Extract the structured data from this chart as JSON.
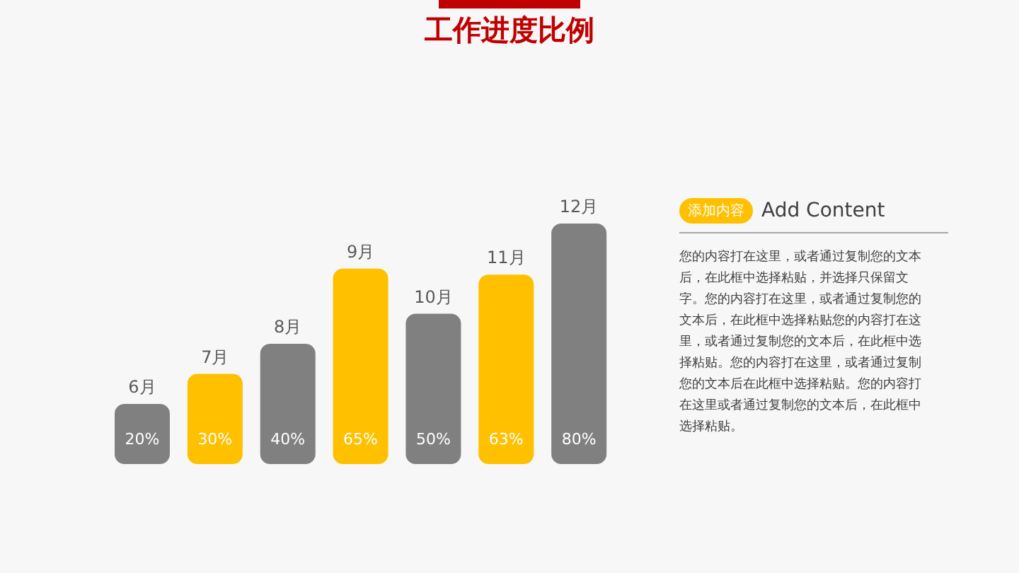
{
  "chart_data": {
    "type": "bar",
    "title": "工作进度比例",
    "categories": [
      "6月",
      "7月",
      "8月",
      "9月",
      "10月",
      "11月",
      "12月"
    ],
    "values": [
      20,
      30,
      40,
      65,
      50,
      63,
      80
    ],
    "colors": [
      "#808080",
      "#ffc000",
      "#808080",
      "#ffc000",
      "#808080",
      "#ffc000",
      "#808080"
    ],
    "value_labels": [
      "20%",
      "30%",
      "40%",
      "65%",
      "50%",
      "63%",
      "80%"
    ],
    "grid": false,
    "legend": false,
    "annotations": [
      "添加内容",
      "Add Content",
      "您的内容打在这里，或者通过复制您的文本后，在此框中选择粘贴，并选择只保留文字。您的内容打在这里，或者通过复制您的文本后，在此框中选择粘贴您的内容打在这里，或者通过复制您的文本后，在此框中选择粘贴。您的内容打在这里，或者通过复制您的文本后在此框中选择粘贴。您的内容打在这里或者通过复制您的文本后，在此框中选择粘贴。"
    ]
  }
}
